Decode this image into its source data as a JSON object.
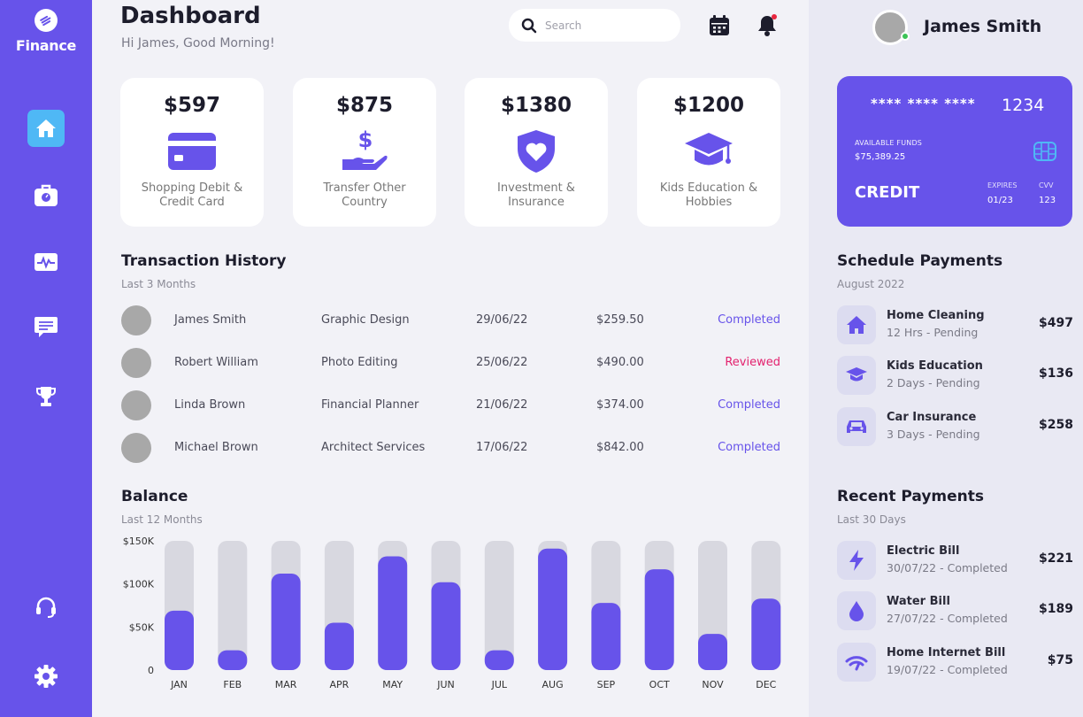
{
  "app": {
    "logo_text": "Finance"
  },
  "sidebar": {
    "items": [
      {
        "name": "home",
        "icon": "home-icon",
        "active": true
      },
      {
        "name": "wallet",
        "icon": "briefcase-icon",
        "active": false
      },
      {
        "name": "activity",
        "icon": "activity-icon",
        "active": false
      },
      {
        "name": "messages",
        "icon": "message-icon",
        "active": false
      },
      {
        "name": "achievements",
        "icon": "trophy-icon",
        "active": false
      },
      {
        "name": "support",
        "icon": "headset-icon",
        "active": false
      },
      {
        "name": "settings",
        "icon": "gear-icon",
        "active": false
      }
    ]
  },
  "header": {
    "title": "Dashboard",
    "greeting": "Hi James, Good Morning!",
    "search_placeholder": "Search"
  },
  "cards": [
    {
      "amount": "$597",
      "label": "Shopping Debit & Credit Card",
      "icon": "credit-card-icon"
    },
    {
      "amount": "$875",
      "label": "Transfer Other Country",
      "icon": "money-transfer-icon"
    },
    {
      "amount": "$1380",
      "label": "Investment & Insurance",
      "icon": "heart-shield-icon"
    },
    {
      "amount": "$1200",
      "label": "Kids Education & Hobbies",
      "icon": "graduation-cap-icon"
    }
  ],
  "transactions": {
    "title": "Transaction History",
    "subtitle": "Last 3 Months",
    "rows": [
      {
        "name": "James Smith",
        "service": "Graphic Design",
        "date": "29/06/22",
        "amount": "$259.50",
        "status": "Completed"
      },
      {
        "name": "Robert William",
        "service": "Photo Editing",
        "date": "25/06/22",
        "amount": "$490.00",
        "status": "Reviewed"
      },
      {
        "name": "Linda Brown",
        "service": "Financial Planner",
        "date": "21/06/22",
        "amount": "$374.00",
        "status": "Completed"
      },
      {
        "name": "Michael Brown",
        "service": "Architect Services",
        "date": "17/06/22",
        "amount": "$842.00",
        "status": "Completed"
      }
    ]
  },
  "balance": {
    "title": "Balance",
    "subtitle": "Last 12 Months"
  },
  "chart_data": {
    "type": "bar",
    "categories": [
      "JAN",
      "FEB",
      "MAR",
      "APR",
      "MAY",
      "JUN",
      "JUL",
      "AUG",
      "SEP",
      "OCT",
      "NOV",
      "DEC"
    ],
    "values": [
      69,
      23,
      112,
      55,
      132,
      102,
      23,
      141,
      78,
      117,
      42,
      83
    ],
    "max": 150,
    "yticks": [
      {
        "value": 150,
        "label": "$150K"
      },
      {
        "value": 100,
        "label": "$100K"
      },
      {
        "value": 50,
        "label": "$50K"
      },
      {
        "value": 0,
        "label": "0"
      }
    ],
    "bar_color": "#6753ea",
    "track_color": "#d8d8e0"
  },
  "user": {
    "name": "James Smith"
  },
  "credit_card": {
    "masked": "**** **** ****",
    "last4": "1234",
    "funds_label": "AVAILABLE FUNDS",
    "funds": "$75,389.25",
    "type": "CREDIT",
    "expires_label": "EXPIRES",
    "expires": "01/23",
    "cvv_label": "CVV",
    "cvv": "123"
  },
  "schedule": {
    "title": "Schedule Payments",
    "subtitle": "August 2022",
    "items": [
      {
        "name": "Home Cleaning",
        "meta": "12 Hrs - Pending",
        "amount": "$497",
        "icon": "house-icon"
      },
      {
        "name": "Kids Education",
        "meta": "2 Days - Pending",
        "amount": "$136",
        "icon": "graduation-cap-icon"
      },
      {
        "name": "Car Insurance",
        "meta": "3 Days - Pending",
        "amount": "$258",
        "icon": "car-icon"
      }
    ]
  },
  "recent": {
    "title": "Recent Payments",
    "subtitle": "Last 30 Days",
    "items": [
      {
        "name": "Electric Bill",
        "meta": "30/07/22 - Completed",
        "amount": "$221",
        "icon": "lightning-icon"
      },
      {
        "name": "Water Bill",
        "meta": "27/07/22 - Completed",
        "amount": "$189",
        "icon": "water-drop-icon"
      },
      {
        "name": "Home Internet Bill",
        "meta": "19/07/22 - Completed",
        "amount": "$75",
        "icon": "wifi-icon"
      }
    ]
  },
  "colors": {
    "accent": "#6753ea",
    "active_nav": "#4fb8f5",
    "completed": "#6753ea",
    "reviewed": "#e3226e"
  }
}
